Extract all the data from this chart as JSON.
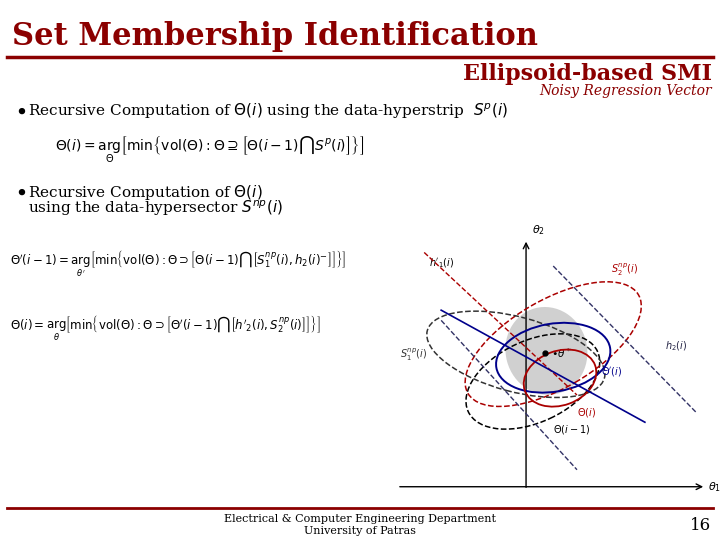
{
  "title": "Set Membership Identification",
  "subtitle": "Ellipsoid-based SMI",
  "subtitle2": "Noisy Regression Vector",
  "title_color": "#8B0000",
  "subtitle_color": "#8B0000",
  "subtitle2_color": "#8B0000",
  "bg_color": "#FFFFFF",
  "separator_color": "#8B0000",
  "footer_text1": "Electrical & Computer Engineering Department",
  "footer_text2": "University of Patras",
  "page_number": "16"
}
